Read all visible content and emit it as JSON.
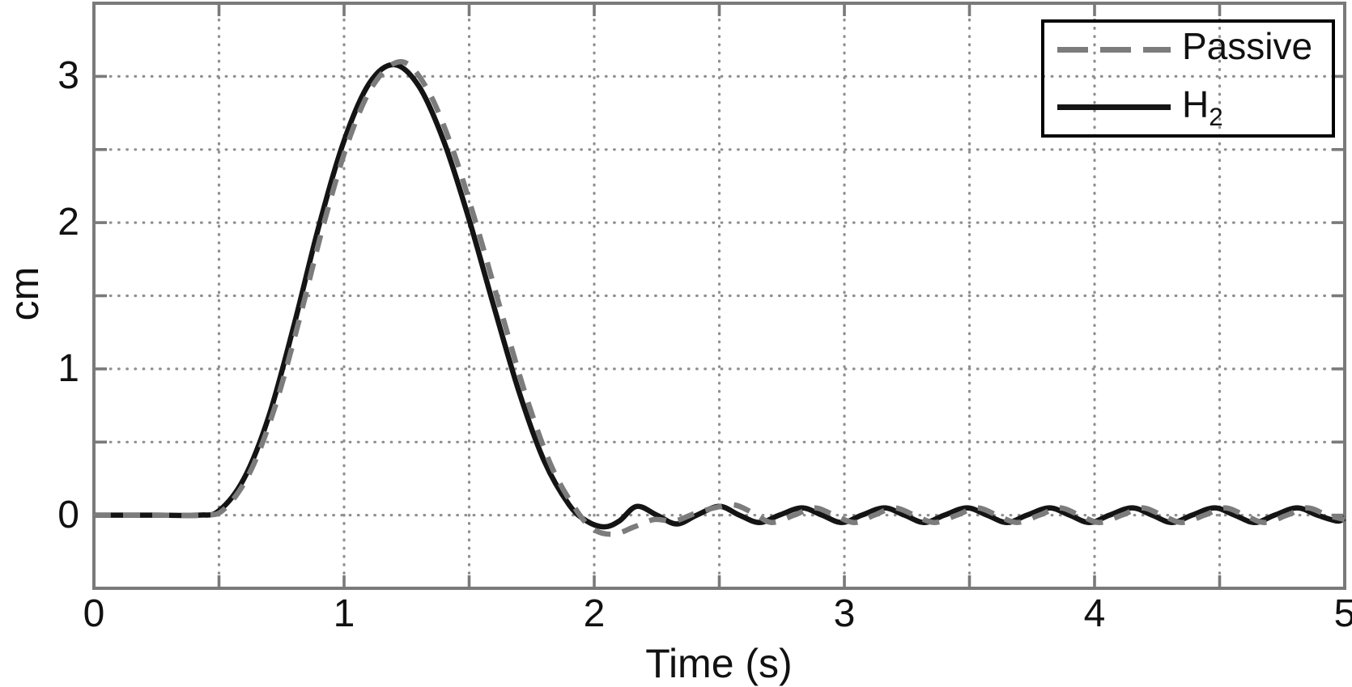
{
  "chart_data": {
    "type": "line",
    "title": "",
    "xlabel": "Time (s)",
    "ylabel": "cm",
    "xlim": [
      0,
      5
    ],
    "ylim": [
      -0.5,
      3.5
    ],
    "grid": true,
    "grid_step": 0.5,
    "xticks": {
      "values": [
        0,
        1,
        2,
        3,
        4,
        5
      ],
      "labels": [
        "0",
        "1",
        "2",
        "3",
        "4",
        "5"
      ]
    },
    "yticks": {
      "values": [
        0,
        1,
        2,
        3
      ],
      "labels": [
        "0",
        "1",
        "2",
        "3"
      ]
    },
    "legend": {
      "position": "top-right",
      "border": true,
      "background": "transparent"
    },
    "colors": {
      "frame": "#7a7a7a",
      "grid": "#8f8f8f",
      "text": "#111111",
      "legend_border": "#000000"
    },
    "series": [
      {
        "id": "passive",
        "label": "Passive",
        "label_sub": "",
        "color": "#7c7c7c",
        "style": "dashed",
        "points": [
          [
            0,
            0
          ],
          [
            0.25,
            0
          ],
          [
            0.44,
            0
          ],
          [
            0.52,
            0.04
          ],
          [
            0.62,
            0.28
          ],
          [
            0.72,
            0.72
          ],
          [
            0.82,
            1.33
          ],
          [
            0.92,
            2.0
          ],
          [
            1.02,
            2.57
          ],
          [
            1.12,
            2.95
          ],
          [
            1.23,
            3.1
          ],
          [
            1.33,
            2.92
          ],
          [
            1.43,
            2.52
          ],
          [
            1.53,
            1.98
          ],
          [
            1.63,
            1.38
          ],
          [
            1.73,
            0.8
          ],
          [
            1.83,
            0.33
          ],
          [
            1.93,
            0.03
          ],
          [
            2.0,
            -0.1
          ],
          [
            2.08,
            -0.13
          ],
          [
            2.16,
            -0.08
          ],
          [
            2.24,
            -0.03
          ],
          [
            2.32,
            -0.04
          ],
          [
            2.4,
            0.01
          ],
          [
            2.48,
            0.05
          ],
          [
            2.56,
            0.07
          ],
          [
            2.64,
            0.01
          ],
          [
            2.71,
            -0.05
          ],
          [
            2.8,
            0
          ],
          [
            2.88,
            0.05
          ],
          [
            2.96,
            0
          ],
          [
            3.04,
            -0.05
          ],
          [
            3.12,
            0
          ],
          [
            3.2,
            0.05
          ],
          [
            3.28,
            0
          ],
          [
            3.36,
            -0.05
          ],
          [
            3.45,
            0
          ],
          [
            3.53,
            0.05
          ],
          [
            3.61,
            0
          ],
          [
            3.69,
            -0.05
          ],
          [
            3.78,
            0
          ],
          [
            3.86,
            0.05
          ],
          [
            3.94,
            0
          ],
          [
            4.02,
            -0.05
          ],
          [
            4.11,
            0
          ],
          [
            4.19,
            0.05
          ],
          [
            4.27,
            0
          ],
          [
            4.35,
            -0.05
          ],
          [
            4.44,
            0
          ],
          [
            4.52,
            0.05
          ],
          [
            4.6,
            0
          ],
          [
            4.68,
            -0.05
          ],
          [
            4.77,
            0
          ],
          [
            4.85,
            0.05
          ],
          [
            4.93,
            0
          ],
          [
            5,
            -0.03
          ]
        ]
      },
      {
        "id": "h2",
        "label": "H",
        "label_sub": "2",
        "color": "#141414",
        "style": "solid",
        "points": [
          [
            0,
            0
          ],
          [
            0.25,
            0
          ],
          [
            0.42,
            0
          ],
          [
            0.5,
            0.03
          ],
          [
            0.6,
            0.25
          ],
          [
            0.7,
            0.68
          ],
          [
            0.8,
            1.3
          ],
          [
            0.9,
            1.98
          ],
          [
            1.0,
            2.56
          ],
          [
            1.1,
            2.95
          ],
          [
            1.2,
            3.08
          ],
          [
            1.3,
            2.93
          ],
          [
            1.4,
            2.55
          ],
          [
            1.5,
            2.02
          ],
          [
            1.6,
            1.42
          ],
          [
            1.7,
            0.84
          ],
          [
            1.8,
            0.37
          ],
          [
            1.9,
            0.07
          ],
          [
            1.97,
            -0.04
          ],
          [
            2.04,
            -0.08
          ],
          [
            2.1,
            -0.04
          ],
          [
            2.17,
            0.06
          ],
          [
            2.25,
            0
          ],
          [
            2.33,
            -0.06
          ],
          [
            2.41,
            0
          ],
          [
            2.5,
            0.06
          ],
          [
            2.58,
            0
          ],
          [
            2.66,
            -0.05
          ],
          [
            2.74,
            0
          ],
          [
            2.83,
            0.05
          ],
          [
            2.91,
            0
          ],
          [
            2.99,
            -0.05
          ],
          [
            3.07,
            0
          ],
          [
            3.16,
            0.05
          ],
          [
            3.24,
            0
          ],
          [
            3.32,
            -0.05
          ],
          [
            3.4,
            0
          ],
          [
            3.49,
            0.05
          ],
          [
            3.57,
            0
          ],
          [
            3.65,
            -0.05
          ],
          [
            3.73,
            0
          ],
          [
            3.82,
            0.05
          ],
          [
            3.9,
            0
          ],
          [
            3.98,
            -0.05
          ],
          [
            4.06,
            0
          ],
          [
            4.15,
            0.05
          ],
          [
            4.23,
            0
          ],
          [
            4.31,
            -0.05
          ],
          [
            4.39,
            0
          ],
          [
            4.48,
            0.05
          ],
          [
            4.56,
            0
          ],
          [
            4.64,
            -0.05
          ],
          [
            4.72,
            0
          ],
          [
            4.81,
            0.05
          ],
          [
            4.89,
            0
          ],
          [
            4.97,
            -0.04
          ],
          [
            5,
            -0.02
          ]
        ]
      }
    ]
  }
}
